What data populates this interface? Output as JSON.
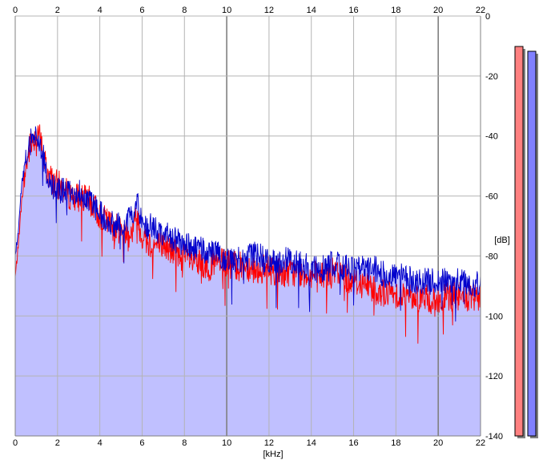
{
  "chart_data": {
    "type": "area",
    "xlabel": "[kHz]",
    "ylabel": "[dB]",
    "xlim": [
      0,
      22
    ],
    "ylim": [
      -140,
      0
    ],
    "x_ticks": [
      "0",
      "2",
      "4",
      "6",
      "8",
      "10",
      "12",
      "14",
      "16",
      "18",
      "20",
      "22"
    ],
    "y_ticks": [
      "0",
      "-20",
      "-40",
      "-60",
      "-80",
      "-100",
      "-120",
      "-140"
    ],
    "grid": true,
    "series": [
      {
        "color": "#ff0000",
        "points": [
          [
            0,
            -87
          ],
          [
            0.15,
            -76
          ],
          [
            0.3,
            -62
          ],
          [
            0.5,
            -50
          ],
          [
            0.7,
            -43
          ],
          [
            0.9,
            -40
          ],
          [
            1.1,
            -38
          ],
          [
            1.3,
            -45
          ],
          [
            1.5,
            -51
          ],
          [
            1.8,
            -55
          ],
          [
            2.1,
            -56
          ],
          [
            2.5,
            -59
          ],
          [
            3,
            -60
          ],
          [
            3.5,
            -61
          ],
          [
            4,
            -66
          ],
          [
            4.5,
            -69
          ],
          [
            5,
            -71
          ],
          [
            5.5,
            -72
          ],
          [
            5.75,
            -66
          ],
          [
            6,
            -73
          ],
          [
            6.5,
            -76
          ],
          [
            7,
            -76
          ],
          [
            7.5,
            -78
          ],
          [
            8,
            -80
          ],
          [
            8.5,
            -82
          ],
          [
            9,
            -83
          ],
          [
            9.5,
            -82
          ],
          [
            10,
            -82
          ],
          [
            10.5,
            -83
          ],
          [
            11,
            -83
          ],
          [
            11.5,
            -84
          ],
          [
            12,
            -84
          ],
          [
            12.5,
            -85
          ],
          [
            13,
            -85
          ],
          [
            13.5,
            -85
          ],
          [
            14,
            -86
          ],
          [
            14.5,
            -86
          ],
          [
            15,
            -85
          ],
          [
            15.5,
            -86
          ],
          [
            16,
            -88
          ],
          [
            16.5,
            -89
          ],
          [
            17,
            -90
          ],
          [
            17.5,
            -92
          ],
          [
            18,
            -92
          ],
          [
            18.5,
            -93
          ],
          [
            19,
            -93
          ],
          [
            19.5,
            -94
          ],
          [
            20,
            -95
          ],
          [
            20.5,
            -93
          ],
          [
            21,
            -93
          ],
          [
            21.5,
            -94
          ],
          [
            22,
            -94
          ]
        ]
      },
      {
        "color": "#0000cc",
        "points": [
          [
            0,
            -80
          ],
          [
            0.15,
            -71
          ],
          [
            0.3,
            -56
          ],
          [
            0.5,
            -48
          ],
          [
            0.7,
            -42
          ],
          [
            0.9,
            -39
          ],
          [
            1.1,
            -40
          ],
          [
            1.3,
            -45
          ],
          [
            1.5,
            -53
          ],
          [
            1.8,
            -57
          ],
          [
            2.1,
            -58
          ],
          [
            2.5,
            -58
          ],
          [
            3,
            -58
          ],
          [
            3.5,
            -61
          ],
          [
            4,
            -65
          ],
          [
            4.5,
            -69
          ],
          [
            5,
            -69
          ],
          [
            5.5,
            -67
          ],
          [
            5.75,
            -60
          ],
          [
            6,
            -69
          ],
          [
            6.5,
            -70
          ],
          [
            7,
            -72
          ],
          [
            7.5,
            -74
          ],
          [
            8,
            -76
          ],
          [
            8.5,
            -77
          ],
          [
            9,
            -78
          ],
          [
            9.5,
            -79
          ],
          [
            10,
            -80
          ],
          [
            10.5,
            -81
          ],
          [
            11,
            -79
          ],
          [
            11.5,
            -79
          ],
          [
            12,
            -82
          ],
          [
            12.5,
            -81
          ],
          [
            13,
            -81
          ],
          [
            13.5,
            -82
          ],
          [
            14,
            -84
          ],
          [
            14.5,
            -84
          ],
          [
            15,
            -82
          ],
          [
            15.5,
            -83
          ],
          [
            16,
            -84
          ],
          [
            16.5,
            -84
          ],
          [
            17,
            -84
          ],
          [
            17.5,
            -86
          ],
          [
            18,
            -86
          ],
          [
            18.5,
            -87
          ],
          [
            19,
            -88
          ],
          [
            19.5,
            -88
          ],
          [
            20,
            -88
          ],
          [
            20.5,
            -88
          ],
          [
            21,
            -88
          ],
          [
            21.5,
            -89
          ],
          [
            22,
            -89
          ]
        ]
      }
    ],
    "meters": [
      {
        "color": "#ff8080",
        "border": "#000000"
      },
      {
        "color": "#8080ff",
        "border": "#000000"
      }
    ],
    "colors": {
      "fill": "#c0c0ff",
      "grid": "#b4b4b4",
      "grid_major": "#808080",
      "red_trace": "#ff0000",
      "blue_trace": "#0000cc"
    }
  }
}
